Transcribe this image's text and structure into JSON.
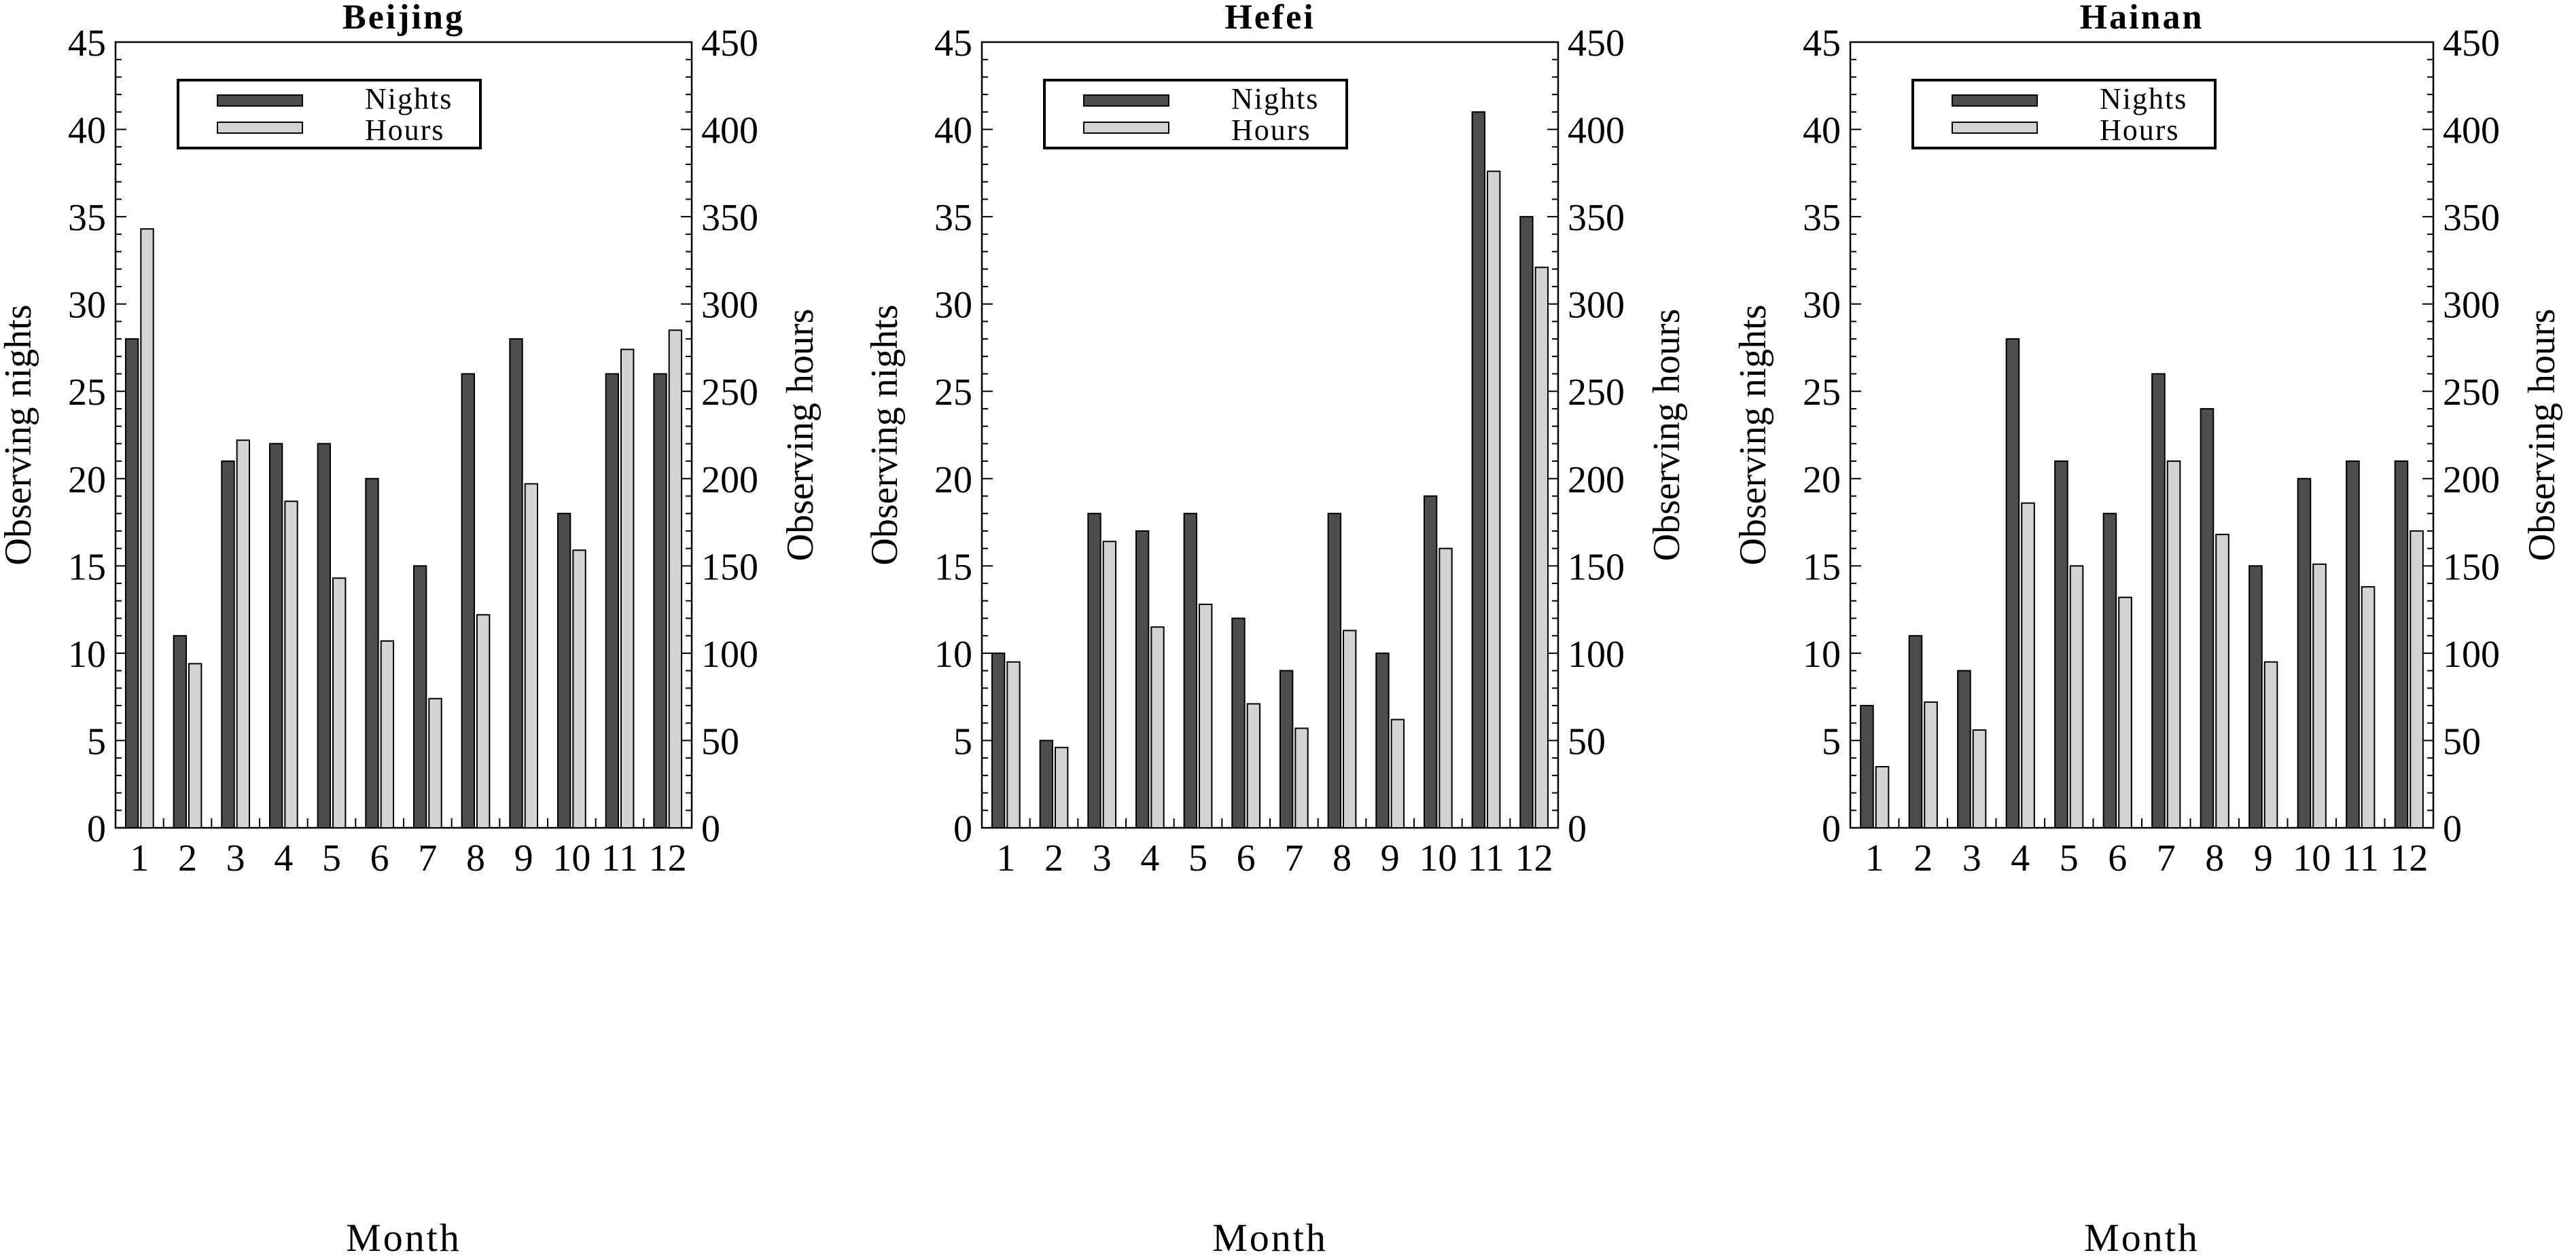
{
  "chart_data": [
    {
      "type": "bar",
      "title": "Beijing",
      "xlabel": "Month",
      "ylabel": "Observing nights",
      "y2label": "Observing hours",
      "categories": [
        "1",
        "2",
        "3",
        "4",
        "5",
        "6",
        "7",
        "8",
        "9",
        "10",
        "11",
        "12"
      ],
      "ylim": [
        0,
        45
      ],
      "y2lim": [
        0,
        450
      ],
      "yticks": [
        0,
        5,
        10,
        15,
        20,
        25,
        30,
        35,
        40,
        45
      ],
      "y2ticks": [
        0,
        50,
        100,
        150,
        200,
        250,
        300,
        350,
        400,
        450
      ],
      "legend": [
        "Nights",
        "Hours"
      ],
      "legend_position": "upper left",
      "grid": false,
      "series": [
        {
          "name": "Nights",
          "axis": "left",
          "color": "#4d4d4d",
          "values": [
            28,
            11,
            21,
            22,
            22,
            20,
            15,
            26,
            28,
            18,
            26,
            26
          ]
        },
        {
          "name": "Hours",
          "axis": "right",
          "color": "#d3d3d3",
          "values": [
            343,
            94,
            222,
            187,
            143,
            107,
            74,
            122,
            197,
            159,
            274,
            285
          ]
        }
      ]
    },
    {
      "type": "bar",
      "title": "Hefei",
      "xlabel": "Month",
      "ylabel": "Observing nights",
      "y2label": "Observing hours",
      "categories": [
        "1",
        "2",
        "3",
        "4",
        "5",
        "6",
        "7",
        "8",
        "9",
        "10",
        "11",
        "12"
      ],
      "ylim": [
        0,
        45
      ],
      "y2lim": [
        0,
        450
      ],
      "yticks": [
        0,
        5,
        10,
        15,
        20,
        25,
        30,
        35,
        40,
        45
      ],
      "y2ticks": [
        0,
        50,
        100,
        150,
        200,
        250,
        300,
        350,
        400,
        450
      ],
      "legend": [
        "Nights",
        "Hours"
      ],
      "legend_position": "upper left",
      "grid": false,
      "series": [
        {
          "name": "Nights",
          "axis": "left",
          "color": "#4d4d4d",
          "values": [
            10,
            5,
            18,
            17,
            18,
            12,
            9,
            18,
            10,
            19,
            41,
            35
          ]
        },
        {
          "name": "Hours",
          "axis": "right",
          "color": "#d3d3d3",
          "values": [
            95,
            46,
            164,
            115,
            128,
            71,
            57,
            113,
            62,
            160,
            376,
            321
          ]
        }
      ]
    },
    {
      "type": "bar",
      "title": "Hainan",
      "xlabel": "Month",
      "ylabel": "Observing nights",
      "y2label": "Observing hours",
      "categories": [
        "1",
        "2",
        "3",
        "4",
        "5",
        "6",
        "7",
        "8",
        "9",
        "10",
        "11",
        "12"
      ],
      "ylim": [
        0,
        45
      ],
      "y2lim": [
        0,
        450
      ],
      "yticks": [
        0,
        5,
        10,
        15,
        20,
        25,
        30,
        35,
        40,
        45
      ],
      "y2ticks": [
        0,
        50,
        100,
        150,
        200,
        250,
        300,
        350,
        400,
        450
      ],
      "legend": [
        "Nights",
        "Hours"
      ],
      "legend_position": "upper left",
      "grid": false,
      "series": [
        {
          "name": "Nights",
          "axis": "left",
          "color": "#4d4d4d",
          "values": [
            7,
            11,
            9,
            28,
            21,
            18,
            26,
            24,
            15,
            20,
            21,
            21
          ]
        },
        {
          "name": "Hours",
          "axis": "right",
          "color": "#d3d3d3",
          "values": [
            35,
            72,
            56,
            186,
            150,
            132,
            210,
            168,
            95,
            151,
            138,
            170
          ]
        }
      ]
    }
  ],
  "panels": [
    {
      "title": "Beijing",
      "xlabel": "Month",
      "ylabel": "Observing nights",
      "y2label": "Observing hours",
      "legend_nights": "Nights",
      "legend_hours": "Hours"
    },
    {
      "title": "Hefei",
      "xlabel": "Month",
      "ylabel": "Observing nights",
      "y2label": "Observing hours",
      "legend_nights": "Nights",
      "legend_hours": "Hours"
    },
    {
      "title": "Hainan",
      "xlabel": "Month",
      "ylabel": "Observing nights",
      "y2label": "Observing hours",
      "legend_nights": "Nights",
      "legend_hours": "Hours"
    }
  ]
}
